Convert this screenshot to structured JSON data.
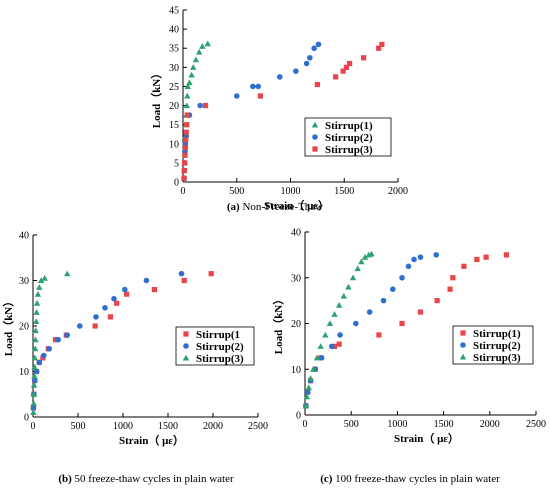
{
  "chart_data": [
    {
      "type": "scatter",
      "caption_tag": "(a)",
      "caption_text": "Non-Freeze-Thaw",
      "xlabel": "Strain（ με）",
      "ylabel": "Load（kN）",
      "xlim": [
        0,
        2000
      ],
      "ylim": [
        0,
        45
      ],
      "xticks": [
        0,
        500,
        1000,
        1500,
        2000
      ],
      "yticks": [
        0,
        5,
        10,
        15,
        20,
        25,
        30,
        35,
        40,
        45
      ],
      "grid": false,
      "legend_position": "middle-right",
      "series": [
        {
          "name": "Stirrup(1)",
          "marker": "triangle",
          "color": "#2ca26e",
          "x": [
            10,
            12,
            15,
            18,
            20,
            22,
            25,
            30,
            35,
            40,
            45,
            60,
            80,
            95,
            120,
            150,
            180,
            230
          ],
          "y": [
            1,
            3,
            5,
            8,
            10,
            12,
            15,
            17.5,
            20,
            22.5,
            25,
            26,
            28,
            30,
            32,
            34,
            35.5,
            36.2
          ]
        },
        {
          "name": "Stirrup(2)",
          "marker": "circle",
          "color": "#2f6fd0",
          "x": [
            10,
            12,
            15,
            18,
            22,
            30,
            60,
            160,
            500,
            650,
            700,
            900,
            1050,
            1150,
            1180,
            1220,
            1260
          ],
          "y": [
            1,
            3,
            5,
            8,
            10,
            12,
            17.5,
            20,
            22.5,
            25,
            25,
            27.5,
            29,
            31,
            32.5,
            35,
            36
          ]
        },
        {
          "name": "Stirrup(3)",
          "marker": "square",
          "color": "#e8444a",
          "x": [
            10,
            12,
            15,
            18,
            22,
            25,
            30,
            35,
            40,
            210,
            720,
            1250,
            1420,
            1490,
            1520,
            1550,
            1680,
            1820,
            1850
          ],
          "y": [
            1,
            3,
            5,
            7,
            9,
            11,
            13,
            15,
            17.5,
            20,
            22.5,
            25.5,
            27.5,
            29,
            30,
            31,
            32.5,
            35,
            36
          ]
        }
      ]
    },
    {
      "type": "scatter",
      "caption_tag": "(b)",
      "caption_text": "50 freeze-thaw cycles in plain water",
      "xlabel": "Strain（ με）",
      "ylabel": "Load（kN）",
      "xlim": [
        0,
        2500
      ],
      "ylim": [
        0,
        40
      ],
      "xticks": [
        0,
        500,
        1000,
        1500,
        2000,
        2500
      ],
      "yticks": [
        0,
        10,
        20,
        30,
        40
      ],
      "grid": false,
      "legend_position": "bottom-right",
      "series": [
        {
          "name": "Stirrup(1",
          "marker": "square",
          "color": "#e8444a",
          "x": [
            5,
            10,
            20,
            40,
            70,
            110,
            170,
            250,
            370,
            690,
            860,
            930,
            1040,
            1350,
            1680,
            1980
          ],
          "y": [
            2,
            5,
            8,
            10,
            12,
            13,
            15,
            17,
            18,
            20,
            22,
            25,
            27,
            28,
            30,
            31.5
          ]
        },
        {
          "name": "Stirrup(2)",
          "marker": "circle",
          "color": "#2f6fd0",
          "x": [
            5,
            10,
            20,
            40,
            70,
            120,
            180,
            280,
            380,
            520,
            700,
            800,
            900,
            1020,
            1260,
            1650
          ],
          "y": [
            2,
            5,
            8,
            10,
            12,
            13.5,
            15,
            17,
            18,
            20,
            22,
            24,
            26,
            28,
            30,
            31.5
          ]
        },
        {
          "name": "Stirrup(3)",
          "marker": "triangle",
          "color": "#2ca26e",
          "x": [
            5,
            8,
            10,
            12,
            15,
            18,
            20,
            25,
            28,
            30,
            35,
            40,
            45,
            55,
            70,
            90,
            130,
            380
          ],
          "y": [
            1,
            3,
            5,
            7,
            9,
            11,
            13,
            15,
            17,
            19,
            21,
            23,
            25,
            27,
            28.5,
            30,
            30.5,
            31.5
          ]
        }
      ]
    },
    {
      "type": "scatter",
      "caption_tag": "(c)",
      "caption_text": "100 freeze-thaw cycles in plain water",
      "xlabel": "Strain（ με）",
      "ylabel": "Load（kN）",
      "xlim": [
        0,
        2500
      ],
      "ylim": [
        0,
        40
      ],
      "xticks": [
        0,
        500,
        1000,
        1500,
        2000,
        2500
      ],
      "yticks": [
        0,
        10,
        20,
        30,
        40
      ],
      "grid": false,
      "legend_position": "bottom-right",
      "series": [
        {
          "name": "Stirrup(1)",
          "marker": "square",
          "color": "#e8444a",
          "x": [
            10,
            30,
            60,
            110,
            170,
            320,
            370,
            800,
            1050,
            1250,
            1430,
            1570,
            1600,
            1720,
            1860,
            1960,
            2180
          ],
          "y": [
            2,
            5,
            7.5,
            10,
            12.5,
            15,
            15.5,
            17.5,
            20,
            22.5,
            25,
            27.5,
            30,
            32.5,
            34,
            34.5,
            35
          ]
        },
        {
          "name": "Stirrup(2)",
          "marker": "circle",
          "color": "#2f6fd0",
          "x": [
            10,
            30,
            60,
            110,
            180,
            290,
            380,
            550,
            700,
            850,
            950,
            1050,
            1120,
            1180,
            1250,
            1420
          ],
          "y": [
            2,
            5,
            7.5,
            10,
            12.5,
            15,
            17.5,
            20,
            22.5,
            25,
            27.5,
            30,
            32.5,
            34,
            34.5,
            35
          ]
        },
        {
          "name": "Stirrup(3)",
          "marker": "triangle",
          "color": "#2ca26e",
          "x": [
            10,
            20,
            40,
            60,
            90,
            130,
            170,
            220,
            270,
            320,
            370,
            420,
            470,
            520,
            570,
            610,
            650,
            690,
            720
          ],
          "y": [
            2,
            4,
            6,
            8,
            10,
            12.5,
            15,
            17.5,
            20,
            22,
            24,
            26,
            28,
            30,
            32,
            33.5,
            34.5,
            35,
            35.2
          ]
        }
      ]
    }
  ]
}
